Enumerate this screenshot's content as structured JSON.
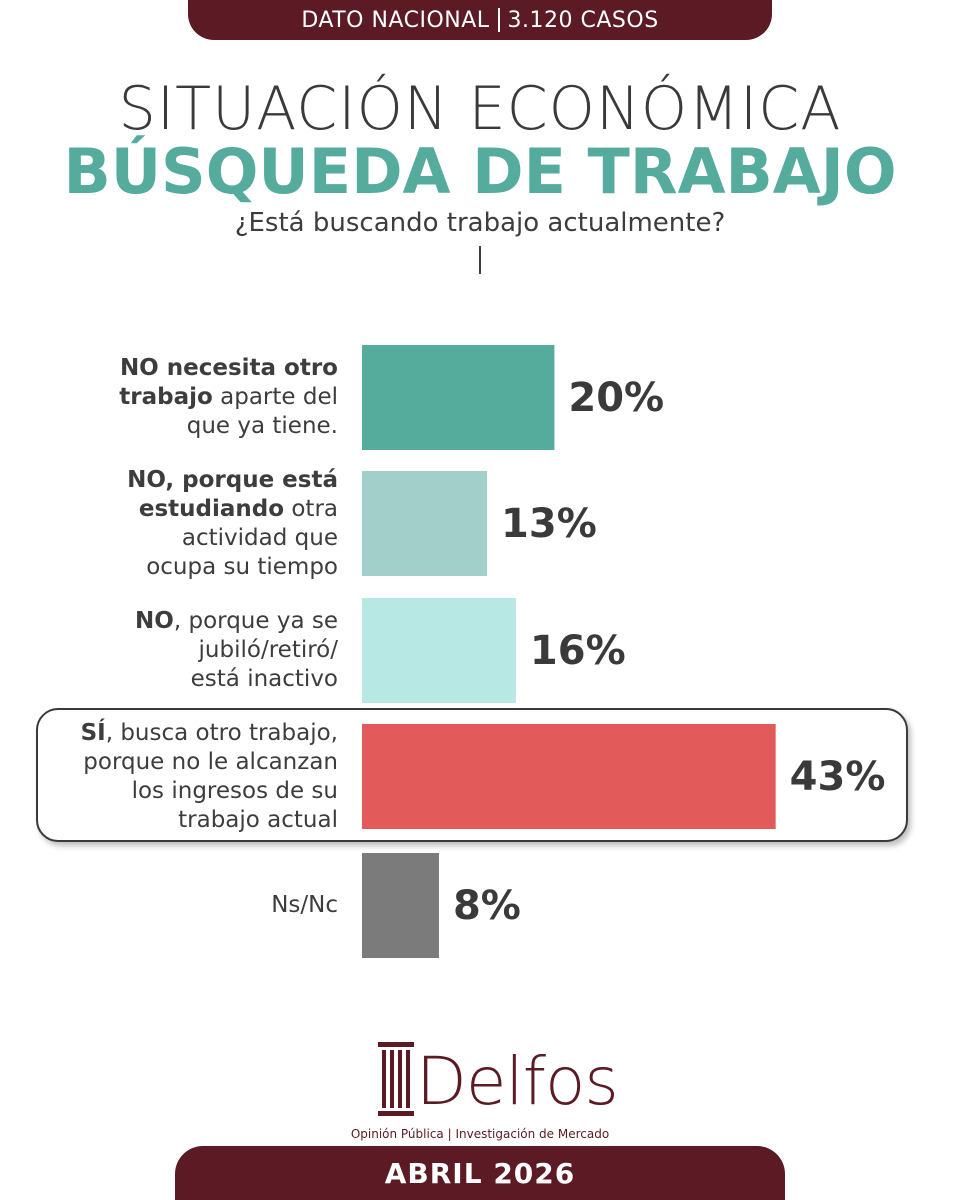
{
  "header": {
    "banner_left": "DATO NACIONAL",
    "banner_right": "3.120 CASOS"
  },
  "title_line1": "SITUACIÓN ECONÓMICA",
  "title_line2": "BÚSQUEDA DE TRABAJO",
  "question": "¿Está buscando trabajo actualmente?",
  "chart_data": {
    "type": "bar",
    "orientation": "horizontal",
    "categories": [
      "NO necesita otro trabajo aparte del que ya tiene.",
      "NO, porque está estudiando otra actividad que ocupa su tiempo",
      "NO, porque ya se jubiló/retiró/está inactivo",
      "SÍ, busca otro trabajo, porque no le alcanzan los ingresos de su trabajo actual",
      "Ns/Nc"
    ],
    "values": [
      20,
      13,
      16,
      43,
      8
    ],
    "value_labels": [
      "20%",
      "13%",
      "16%",
      "43%",
      "8%"
    ],
    "colors": [
      "#55ab9c",
      "#a3cfca",
      "#b8e8e3",
      "#e35a5a",
      "#7b7b7b"
    ],
    "highlighted_category": "SÍ, busca otro trabajo, porque no le alcanzan los ingresos de su trabajo actual",
    "grid": false,
    "legend": "none"
  },
  "labels": [
    {
      "lines": [
        {
          "bold": "NO necesita otro",
          "rest": ""
        },
        {
          "bold": "trabajo",
          "rest": " aparte del"
        },
        {
          "bold": "",
          "rest": "que ya tiene."
        }
      ]
    },
    {
      "lines": [
        {
          "bold": "NO, porque está",
          "rest": ""
        },
        {
          "bold": "estudiando",
          "rest": " otra"
        },
        {
          "bold": "",
          "rest": "actividad que"
        },
        {
          "bold": "",
          "rest": "ocupa su tiempo"
        }
      ]
    },
    {
      "lines": [
        {
          "bold": "NO",
          "rest": ", porque ya se"
        },
        {
          "bold": "",
          "rest": "jubiló/retiró/"
        },
        {
          "bold": "",
          "rest": "está inactivo"
        }
      ]
    },
    {
      "lines": [
        {
          "bold": "SÍ",
          "rest": ", busca otro trabajo,"
        },
        {
          "bold": "",
          "rest": "porque no le alcanzan"
        },
        {
          "bold": "",
          "rest": "los ingresos de su"
        },
        {
          "bold": "",
          "rest": "trabajo actual"
        }
      ]
    },
    {
      "lines": [
        {
          "bold": "",
          "rest": "Ns/Nc"
        }
      ]
    }
  ],
  "logo": {
    "name": "Delfos",
    "tagline": "Opinión Pública | Investigación de Mercado"
  },
  "footer": {
    "date": "ABRIL 2026"
  }
}
